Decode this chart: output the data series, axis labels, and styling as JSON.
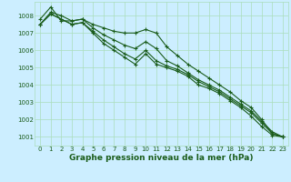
{
  "x": [
    0,
    1,
    2,
    3,
    4,
    5,
    6,
    7,
    8,
    9,
    10,
    11,
    12,
    13,
    14,
    15,
    16,
    17,
    18,
    19,
    20,
    21,
    22,
    23
  ],
  "series": [
    [
      1007.5,
      1008.1,
      1007.8,
      1007.5,
      1007.6,
      1007.0,
      1006.4,
      1006.0,
      1005.6,
      1005.2,
      1005.8,
      1005.2,
      1005.0,
      1004.8,
      1004.5,
      1004.0,
      1003.8,
      1003.5,
      1003.1,
      1002.7,
      1002.2,
      1001.6,
      1001.1,
      1001.0
    ],
    [
      1007.5,
      1008.1,
      1007.8,
      1007.5,
      1007.6,
      1007.1,
      1006.6,
      1006.2,
      1005.8,
      1005.5,
      1006.0,
      1005.4,
      1005.1,
      1004.9,
      1004.6,
      1004.2,
      1003.9,
      1003.6,
      1003.2,
      1002.8,
      1002.4,
      1001.8,
      1001.2,
      1001.0
    ],
    [
      1007.5,
      1008.2,
      1008.0,
      1007.7,
      1007.8,
      1007.3,
      1006.9,
      1006.6,
      1006.3,
      1006.1,
      1006.5,
      1006.1,
      1005.4,
      1005.1,
      1004.7,
      1004.3,
      1004.0,
      1003.7,
      1003.3,
      1002.9,
      1002.5,
      1001.9,
      1001.3,
      1001.0
    ],
    [
      1007.8,
      1008.5,
      1007.7,
      1007.7,
      1007.8,
      1007.5,
      1007.3,
      1007.1,
      1007.0,
      1007.0,
      1007.2,
      1007.0,
      1006.2,
      1005.7,
      1005.2,
      1004.8,
      1004.4,
      1004.0,
      1003.6,
      1003.1,
      1002.7,
      1002.0,
      1001.2,
      1001.0
    ]
  ],
  "line_color": "#1a5c1a",
  "marker": "+",
  "marker_size": 3,
  "marker_lw": 0.8,
  "line_width": 0.8,
  "bg_color": "#cceeff",
  "grid_color": "#aaddbb",
  "xlabel": "Graphe pression niveau de la mer (hPa)",
  "ylim": [
    1000.5,
    1008.8
  ],
  "yticks": [
    1001,
    1002,
    1003,
    1004,
    1005,
    1006,
    1007,
    1008
  ],
  "xticks": [
    0,
    1,
    2,
    3,
    4,
    5,
    6,
    7,
    8,
    9,
    10,
    11,
    12,
    13,
    14,
    15,
    16,
    17,
    18,
    19,
    20,
    21,
    22,
    23
  ],
  "tick_fontsize": 5.0,
  "xlabel_fontsize": 6.5
}
